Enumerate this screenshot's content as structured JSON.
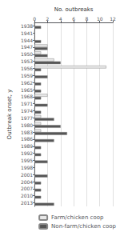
{
  "chart_data": {
    "type": "bar",
    "orientation": "horizontal",
    "xlabel": "No. outbreaks",
    "ylabel": "Outbreak onset, y",
    "categories": [
      "1938",
      "1941",
      "1944",
      "1947",
      "1950",
      "1953",
      "1956",
      "1959",
      "1962",
      "1965",
      "1968",
      "1971",
      "1974",
      "1977",
      "1980",
      "1983",
      "1986",
      "1989",
      "1992",
      "1995",
      "1998",
      "2001",
      "2004",
      "2007",
      "2010",
      "2013"
    ],
    "series": [
      {
        "name": "Farm/chicken coop",
        "color": "#e8e8e8",
        "values": [
          0,
          0,
          0,
          2,
          1,
          3,
          11,
          0,
          0,
          0,
          2,
          0,
          0,
          1,
          1,
          1,
          0,
          0,
          0,
          0,
          0,
          0,
          0,
          0,
          0,
          0
        ]
      },
      {
        "name": "Non-farm/chicken coop",
        "color": "#555555",
        "values": [
          1,
          0,
          1,
          2,
          2,
          4,
          1,
          2,
          1,
          1,
          1,
          2,
          1,
          3,
          4,
          5,
          3,
          1,
          1,
          2,
          0,
          2,
          1,
          1,
          1,
          3
        ]
      }
    ],
    "xlim": [
      0,
      12
    ],
    "xticks": [
      0,
      2,
      4,
      6,
      8,
      10,
      12
    ],
    "grid": true,
    "legend": "lower right"
  }
}
